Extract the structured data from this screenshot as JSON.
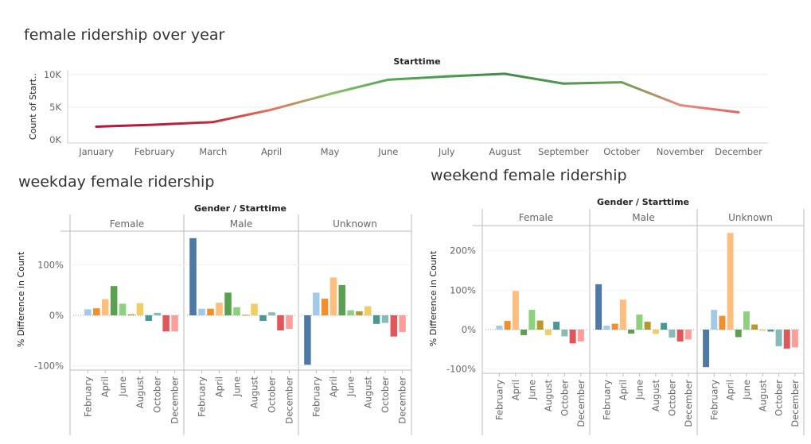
{
  "titles": {
    "line": "female ridership over year",
    "weekday": "weekday female ridership",
    "weekend": "weekend female ridership"
  },
  "chart_data": [
    {
      "type": "line",
      "header": "Starttime",
      "ylabel": "Count of Start..",
      "y_ticks": [
        "0K",
        "5K",
        "10K"
      ],
      "y_tick_values": [
        0,
        5000,
        10000
      ],
      "ylim": [
        -500,
        10700
      ],
      "grid": true,
      "categories": [
        "January",
        "February",
        "March",
        "April",
        "May",
        "June",
        "July",
        "August",
        "September",
        "October",
        "November",
        "December"
      ],
      "values": [
        2000,
        2300,
        2700,
        4600,
        7000,
        9200,
        9700,
        10100,
        8600,
        8800,
        5300,
        4200
      ],
      "colors": [
        "#b5153d",
        "#b81b3d",
        "#c42a3c",
        "#e3765e",
        "#8bc06a",
        "#5aa656",
        "#4a9a50",
        "#3f8c47",
        "#4f9850",
        "#6b9d55",
        "#e98a7a",
        "#e0665d"
      ]
    },
    {
      "type": "bar",
      "chart": "weekday",
      "header": "Gender / Starttime",
      "ylabel": "% Difference in Count",
      "y_ticks": [
        "-100%",
        "0%",
        "100%"
      ],
      "y_tick_values": [
        -100,
        0,
        100
      ],
      "ylim": [
        -110,
        160
      ],
      "panels": [
        "Female",
        "Male",
        "Unknown"
      ],
      "x_tick_labels": [
        "February",
        "April",
        "June",
        "August",
        "October",
        "December"
      ],
      "month_colors": [
        "#4e79a7",
        "#a0cbe8",
        "#f28e2b",
        "#ffbe7d",
        "#59a14f",
        "#8cd17d",
        "#b6992d",
        "#f1ce63",
        "#499894",
        "#86bcb6",
        "#e15759",
        "#ff9d9a"
      ],
      "series": [
        {
          "name": "Female",
          "values": [
            null,
            12,
            14,
            32,
            58,
            23,
            2,
            24,
            -11,
            5,
            -32,
            -32
          ]
        },
        {
          "name": "Male",
          "values": [
            153,
            13,
            13,
            25,
            45,
            16,
            1,
            23,
            -11,
            6,
            -30,
            -27
          ]
        },
        {
          "name": "Unknown",
          "values": [
            -98,
            45,
            33,
            75,
            60,
            10,
            8,
            18,
            -17,
            -15,
            -42,
            -33
          ]
        }
      ]
    },
    {
      "type": "bar",
      "chart": "weekend",
      "header": "Gender / Starttime",
      "ylabel": "% Difference in Count",
      "y_ticks": [
        "-100%",
        "0%",
        "100%",
        "200%"
      ],
      "y_tick_values": [
        -100,
        0,
        100,
        200
      ],
      "ylim": [
        -105,
        255
      ],
      "panels": [
        "Female",
        "Male",
        "Unknown"
      ],
      "x_tick_labels": [
        "February",
        "April",
        "June",
        "August",
        "October",
        "December"
      ],
      "month_colors": [
        "#4e79a7",
        "#a0cbe8",
        "#f28e2b",
        "#ffbe7d",
        "#59a14f",
        "#8cd17d",
        "#b6992d",
        "#f1ce63",
        "#499894",
        "#86bcb6",
        "#e15759",
        "#ff9d9a"
      ],
      "series": [
        {
          "name": "Female",
          "values": [
            null,
            10,
            22,
            98,
            -14,
            50,
            23,
            -14,
            20,
            -17,
            -35,
            -30
          ]
        },
        {
          "name": "Male",
          "values": [
            115,
            10,
            15,
            76,
            -10,
            38,
            20,
            -11,
            17,
            -20,
            -30,
            -25
          ]
        },
        {
          "name": "Unknown",
          "values": [
            -95,
            50,
            35,
            245,
            -19,
            46,
            13,
            -3,
            -5,
            -42,
            -48,
            -45
          ]
        }
      ]
    }
  ]
}
